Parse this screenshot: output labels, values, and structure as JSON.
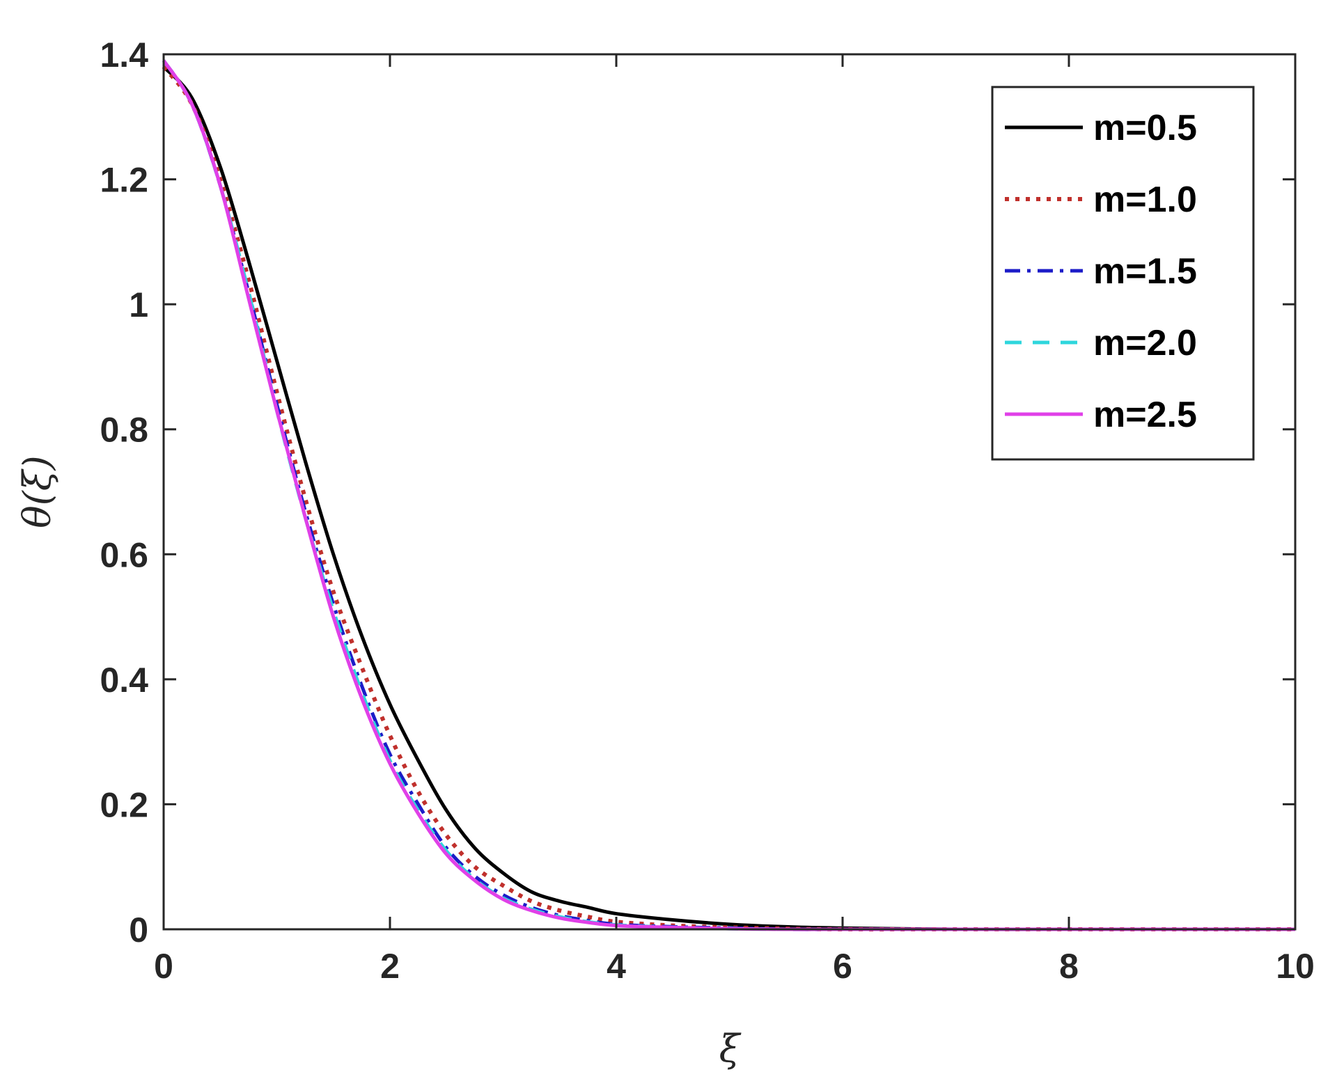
{
  "chart_data": {
    "type": "line",
    "title": "",
    "xlabel": "ξ",
    "ylabel": "θ(ξ)",
    "xlim": [
      0,
      10
    ],
    "ylim": [
      0,
      1.4
    ],
    "xticks": [
      0,
      2,
      4,
      6,
      8,
      10
    ],
    "yticks": [
      0,
      0.2,
      0.4,
      0.6,
      0.8,
      1,
      1.2,
      1.4
    ],
    "xtick_labels": [
      "0",
      "2",
      "4",
      "6",
      "8",
      "10"
    ],
    "ytick_labels": [
      "0",
      "0.2",
      "0.4",
      "0.6",
      "0.8",
      "1",
      "1.2",
      "1.4"
    ],
    "grid": false,
    "legend_position": "top-right",
    "x": [
      0,
      0.25,
      0.5,
      0.75,
      1.0,
      1.25,
      1.5,
      1.75,
      2.0,
      2.25,
      2.5,
      2.75,
      3.0,
      3.25,
      3.5,
      3.75,
      4.0,
      4.5,
      5.0,
      5.5,
      6.0,
      7.0,
      8.0,
      9.0,
      10.0
    ],
    "series": [
      {
        "name": "m=0.5",
        "color": "#000000",
        "style": "solid",
        "values": [
          1.38,
          1.33,
          1.22,
          1.07,
          0.91,
          0.75,
          0.6,
          0.47,
          0.36,
          0.27,
          0.19,
          0.13,
          0.09,
          0.06,
          0.045,
          0.035,
          0.025,
          0.015,
          0.008,
          0.004,
          0.002,
          0.0,
          0.0,
          0.0,
          0.0
        ]
      },
      {
        "name": "m=1.0",
        "color": "#c0302c",
        "style": "dotted",
        "values": [
          1.38,
          1.32,
          1.2,
          1.04,
          0.86,
          0.69,
          0.54,
          0.42,
          0.31,
          0.22,
          0.15,
          0.1,
          0.07,
          0.045,
          0.03,
          0.02,
          0.012,
          0.006,
          0.003,
          0.001,
          0.0,
          0.0,
          0.0,
          0.0,
          0.0
        ]
      },
      {
        "name": "m=1.5",
        "color": "#1c1cc8",
        "style": "dashdot",
        "values": [
          1.39,
          1.32,
          1.19,
          1.02,
          0.84,
          0.67,
          0.52,
          0.39,
          0.28,
          0.2,
          0.13,
          0.085,
          0.055,
          0.035,
          0.022,
          0.014,
          0.008,
          0.004,
          0.002,
          0.0,
          0.0,
          0.0,
          0.0,
          0.0,
          0.0
        ]
      },
      {
        "name": "m=2.0",
        "color": "#2ed6dc",
        "style": "dashed",
        "values": [
          1.39,
          1.32,
          1.19,
          1.02,
          0.83,
          0.66,
          0.51,
          0.38,
          0.27,
          0.19,
          0.125,
          0.08,
          0.05,
          0.032,
          0.02,
          0.012,
          0.007,
          0.003,
          0.001,
          0.0,
          0.0,
          0.0,
          0.0,
          0.0,
          0.0
        ]
      },
      {
        "name": "m=2.5",
        "color": "#e040e8",
        "style": "solid",
        "values": [
          1.39,
          1.32,
          1.19,
          1.01,
          0.83,
          0.66,
          0.5,
          0.37,
          0.265,
          0.185,
          0.12,
          0.078,
          0.048,
          0.03,
          0.018,
          0.011,
          0.006,
          0.003,
          0.001,
          0.0,
          0.0,
          0.0,
          0.0,
          0.0,
          0.0
        ]
      }
    ]
  }
}
